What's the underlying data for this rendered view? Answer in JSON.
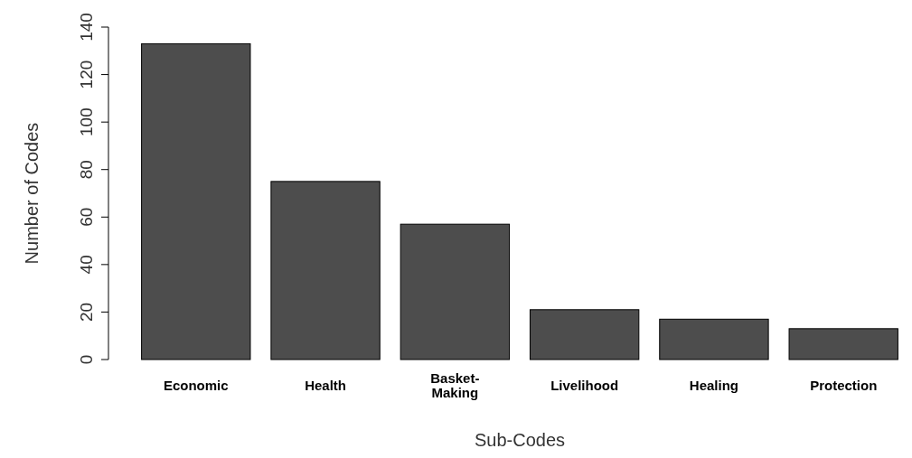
{
  "chart_data": {
    "type": "bar",
    "xlabel": "Sub-Codes",
    "ylabel": "Number of Codes",
    "categories": [
      "Economic",
      "Health",
      "Basket-\nMaking",
      "Livelihood",
      "Healing",
      "Protection"
    ],
    "values": [
      133,
      75,
      57,
      21,
      17,
      13
    ],
    "color": "#4d4d4d",
    "ylim": [
      0,
      140
    ],
    "yticks": [
      0,
      20,
      40,
      60,
      80,
      100,
      120,
      140
    ],
    "grid": false
  }
}
